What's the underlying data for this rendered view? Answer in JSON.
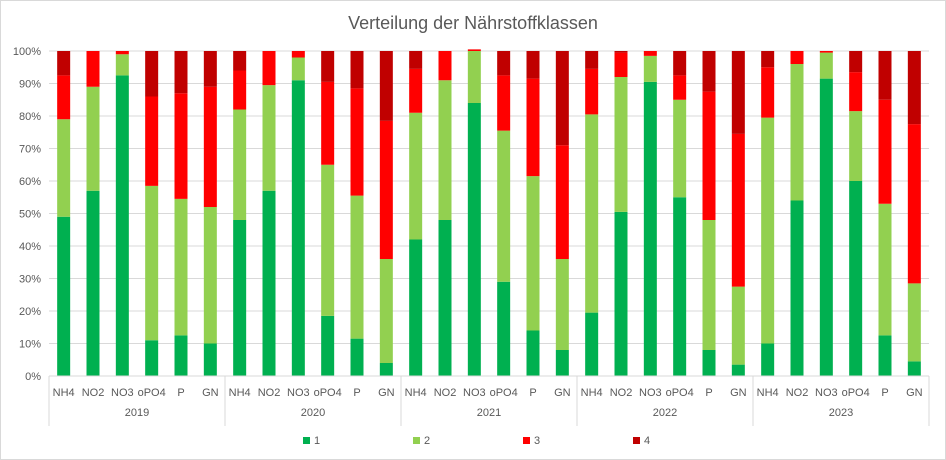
{
  "chart_data": {
    "type": "bar",
    "stacked": true,
    "percent_stacked": true,
    "title": "Verteilung der Nährstoffklassen",
    "xlabel": "",
    "ylabel": "",
    "ylim": [
      0,
      100
    ],
    "y_ticks": [
      "0%",
      "10%",
      "20%",
      "30%",
      "40%",
      "50%",
      "60%",
      "70%",
      "80%",
      "90%",
      "100%"
    ],
    "grid": true,
    "legend_position": "bottom",
    "groups": [
      "2019",
      "2020",
      "2021",
      "2022",
      "2023"
    ],
    "categories": [
      "NH4",
      "NO2",
      "NO3",
      "oPO4",
      "P",
      "GN"
    ],
    "series": [
      {
        "name": "1",
        "color": "#00b050",
        "values": [
          [
            49,
            57,
            92.5,
            11,
            12.5,
            10
          ],
          [
            48,
            57,
            91,
            18.5,
            11.5,
            4
          ],
          [
            42,
            48,
            84,
            29,
            14,
            8
          ],
          [
            19.5,
            50.5,
            90.5,
            55,
            8,
            3.5
          ],
          [
            10,
            54,
            91.5,
            60,
            12.5,
            4.5
          ]
        ]
      },
      {
        "name": "2",
        "color": "#92d050",
        "values": [
          [
            30,
            32,
            6.5,
            47.5,
            42,
            42
          ],
          [
            34,
            32.5,
            7,
            46.5,
            44,
            32
          ],
          [
            39,
            43,
            16,
            46.5,
            47.5,
            28
          ],
          [
            61,
            41.5,
            8,
            30,
            40,
            24
          ],
          [
            69.5,
            42,
            8,
            21.5,
            40.5,
            24
          ]
        ]
      },
      {
        "name": "3",
        "color": "#ff0000",
        "values": [
          [
            13.5,
            11,
            1,
            27.5,
            32.5,
            37
          ],
          [
            12,
            10.5,
            2,
            25.5,
            33,
            42.5
          ],
          [
            13.5,
            9,
            0.5,
            17,
            30,
            35
          ],
          [
            14,
            7.5,
            1.5,
            7.5,
            39.5,
            47
          ],
          [
            15.5,
            4,
            0.5,
            12,
            32,
            49
          ]
        ]
      },
      {
        "name": "4",
        "color": "#c00000",
        "values": [
          [
            7.5,
            0,
            0,
            14,
            13,
            11
          ],
          [
            6,
            0,
            0,
            9.5,
            11.5,
            21.5
          ],
          [
            5.5,
            0,
            0,
            7.5,
            8.5,
            29
          ],
          [
            5.5,
            0.5,
            0,
            7.5,
            12.5,
            25.5
          ],
          [
            5,
            0,
            0,
            6.5,
            15,
            22.5
          ]
        ]
      }
    ]
  }
}
